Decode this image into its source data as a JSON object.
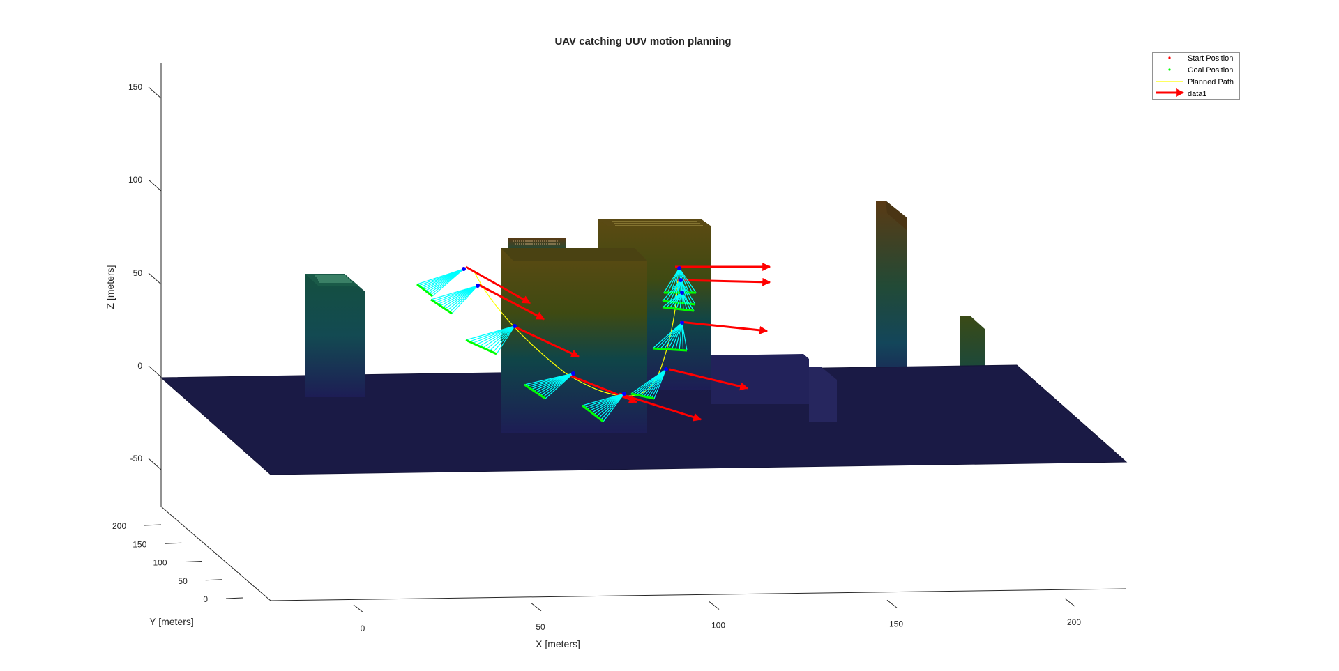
{
  "chart_data": {
    "type": "3d-scene",
    "title": "UAV catching UUV motion planning",
    "xlabel": "X [meters]",
    "ylabel": "Y [meters]",
    "zlabel": "Z [meters]",
    "x_ticks": [
      "0",
      "50",
      "100",
      "150",
      "200"
    ],
    "y_ticks": [
      "0",
      "50",
      "100",
      "150",
      "200"
    ],
    "z_ticks": [
      "-50",
      "0",
      "50",
      "100",
      "150"
    ],
    "xlim": [
      -25,
      215
    ],
    "ylim": [
      0,
      200
    ],
    "zlim": [
      -75,
      160
    ],
    "grid": false,
    "legend_position": "top-right",
    "legend": [
      {
        "label": "Start Position",
        "marker": "dot",
        "color": "#ff0000"
      },
      {
        "label": "Goal Position",
        "marker": "dot",
        "color": "#00ff00"
      },
      {
        "label": "Planned Path",
        "marker": "line",
        "color": "#ffff00"
      },
      {
        "label": "data1",
        "marker": "arrow",
        "color": "#ff0000"
      }
    ],
    "colors": {
      "ground": "#1a1a45",
      "path": "#ffff00",
      "arrow": "#ff0000",
      "uav_body": "#00ffff",
      "uav_tip": "#00ff00",
      "uav_hub": "#0000ff"
    }
  }
}
